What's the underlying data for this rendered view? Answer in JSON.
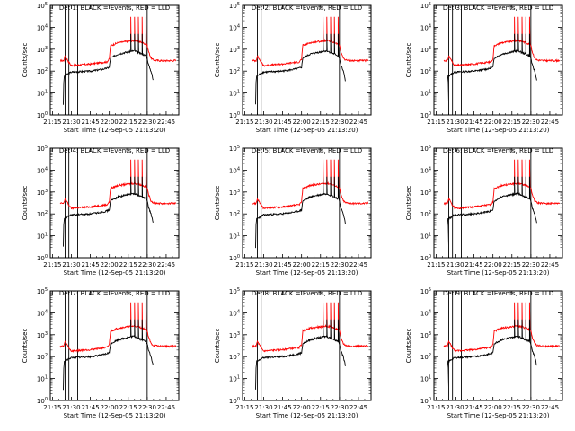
{
  "chart_data": [
    {
      "type": "line",
      "title": "Det 1: BLACK = Events, RED = LLD",
      "xlabel": "Start Time (12-Sep-05 21:13:20)",
      "ylabel": "Counts/sec",
      "detector": 1
    },
    {
      "type": "line",
      "title": "Det 2: BLACK = Events, RED = LLD",
      "xlabel": "Start Time (12-Sep-05 21:13:20)",
      "ylabel": "Counts/sec",
      "detector": 2
    },
    {
      "type": "line",
      "title": "Det 3: BLACK = Events, RED = LLD",
      "xlabel": "Start Time (12-Sep-05 21:13:20)",
      "ylabel": "Counts/sec",
      "detector": 3
    },
    {
      "type": "line",
      "title": "Det 4: BLACK = Events, RED = LLD",
      "xlabel": "Start Time (12-Sep-05 21:13:20)",
      "ylabel": "Counts/sec",
      "detector": 4
    },
    {
      "type": "line",
      "title": "Det 5: BLACK = Events, RED = LLD",
      "xlabel": "Start Time (12-Sep-05 21:13:20)",
      "ylabel": "Counts/sec",
      "detector": 5
    },
    {
      "type": "line",
      "title": "Det 6: BLACK = Events, RED = LLD",
      "xlabel": "Start Time (12-Sep-05 21:13:20)",
      "ylabel": "Counts/sec",
      "detector": 6
    },
    {
      "type": "line",
      "title": "Det 7: BLACK = Events, RED = LLD",
      "xlabel": "Start Time (12-Sep-05 21:13:20)",
      "ylabel": "Counts/sec",
      "detector": 7
    },
    {
      "type": "line",
      "title": "Det 8: BLACK = Events, RED = LLD",
      "xlabel": "Start Time (12-Sep-05 21:13:20)",
      "ylabel": "Counts/sec",
      "detector": 8
    },
    {
      "type": "line",
      "title": "Det 9: BLACK = Events, RED = LLD",
      "xlabel": "Start Time (12-Sep-05 21:13:20)",
      "ylabel": "Counts/sec",
      "detector": 9
    }
  ],
  "shared": {
    "x_ticks": [
      "21:15",
      "21:30",
      "21:45",
      "22:00",
      "22:15",
      "22:30",
      "22:45"
    ],
    "x_tick_minutes": [
      0,
      15,
      30,
      45,
      60,
      75,
      90
    ],
    "xlim_minutes": [
      -1.7,
      100
    ],
    "y_ticks": [
      {
        "base": "10",
        "exp": "0",
        "value": 1
      },
      {
        "base": "10",
        "exp": "1",
        "value": 10
      },
      {
        "base": "10",
        "exp": "2",
        "value": 100
      },
      {
        "base": "10",
        "exp": "3",
        "value": 1000
      },
      {
        "base": "10",
        "exp": "4",
        "value": 10000
      },
      {
        "base": "10",
        "exp": "5",
        "value": 100000
      }
    ],
    "yscale": "log",
    "ylim": [
      1,
      100000
    ],
    "vertical_lines_minutes": [
      10,
      13,
      20,
      75
    ],
    "spike_minutes": [
      62,
      65,
      68,
      71,
      74
    ],
    "series": [
      {
        "name": "Events",
        "color": "#000000"
      },
      {
        "name": "LLD",
        "color": "#ff0000"
      }
    ],
    "events_profile": [
      [
        -1.7,
        null
      ],
      [
        8.5,
        null
      ],
      [
        8.6,
        3
      ],
      [
        9,
        30
      ],
      [
        9.5,
        60
      ],
      [
        10,
        60
      ],
      [
        13,
        80
      ],
      [
        15,
        90
      ],
      [
        22,
        95
      ],
      [
        30,
        100
      ],
      [
        35,
        110
      ],
      [
        42,
        130
      ],
      [
        45,
        150
      ],
      [
        46,
        400
      ],
      [
        48,
        450
      ],
      [
        50,
        520
      ],
      [
        52,
        600
      ],
      [
        55,
        650
      ],
      [
        57,
        700
      ],
      [
        60,
        750
      ],
      [
        62,
        800
      ],
      [
        65,
        850
      ],
      [
        68,
        700
      ],
      [
        71,
        600
      ],
      [
        74,
        500
      ],
      [
        75,
        400
      ],
      [
        76,
        200
      ],
      [
        78,
        100
      ],
      [
        79,
        60
      ],
      [
        80,
        30
      ],
      [
        80.1,
        null
      ],
      [
        100,
        null
      ]
    ],
    "lld_profile": [
      [
        -1.7,
        null
      ],
      [
        6,
        null
      ],
      [
        6.1,
        300
      ],
      [
        9,
        300
      ],
      [
        10,
        500
      ],
      [
        13,
        250
      ],
      [
        15,
        180
      ],
      [
        20,
        190
      ],
      [
        25,
        200
      ],
      [
        30,
        210
      ],
      [
        35,
        230
      ],
      [
        40,
        250
      ],
      [
        43,
        260
      ],
      [
        45,
        350
      ],
      [
        46,
        1500
      ],
      [
        48,
        1600
      ],
      [
        50,
        1800
      ],
      [
        52,
        2000
      ],
      [
        55,
        2100
      ],
      [
        57,
        2200
      ],
      [
        60,
        2300
      ],
      [
        62,
        2400
      ],
      [
        65,
        2500
      ],
      [
        68,
        2300
      ],
      [
        71,
        2000
      ],
      [
        74,
        1700
      ],
      [
        75,
        1500
      ],
      [
        76,
        800
      ],
      [
        78,
        400
      ],
      [
        80,
        320
      ],
      [
        85,
        300
      ],
      [
        90,
        300
      ],
      [
        95,
        300
      ],
      [
        98,
        310
      ],
      [
        98.1,
        null
      ],
      [
        100,
        null
      ]
    ],
    "events_spike_peak": 5000,
    "lld_spike_peak": 30000
  }
}
